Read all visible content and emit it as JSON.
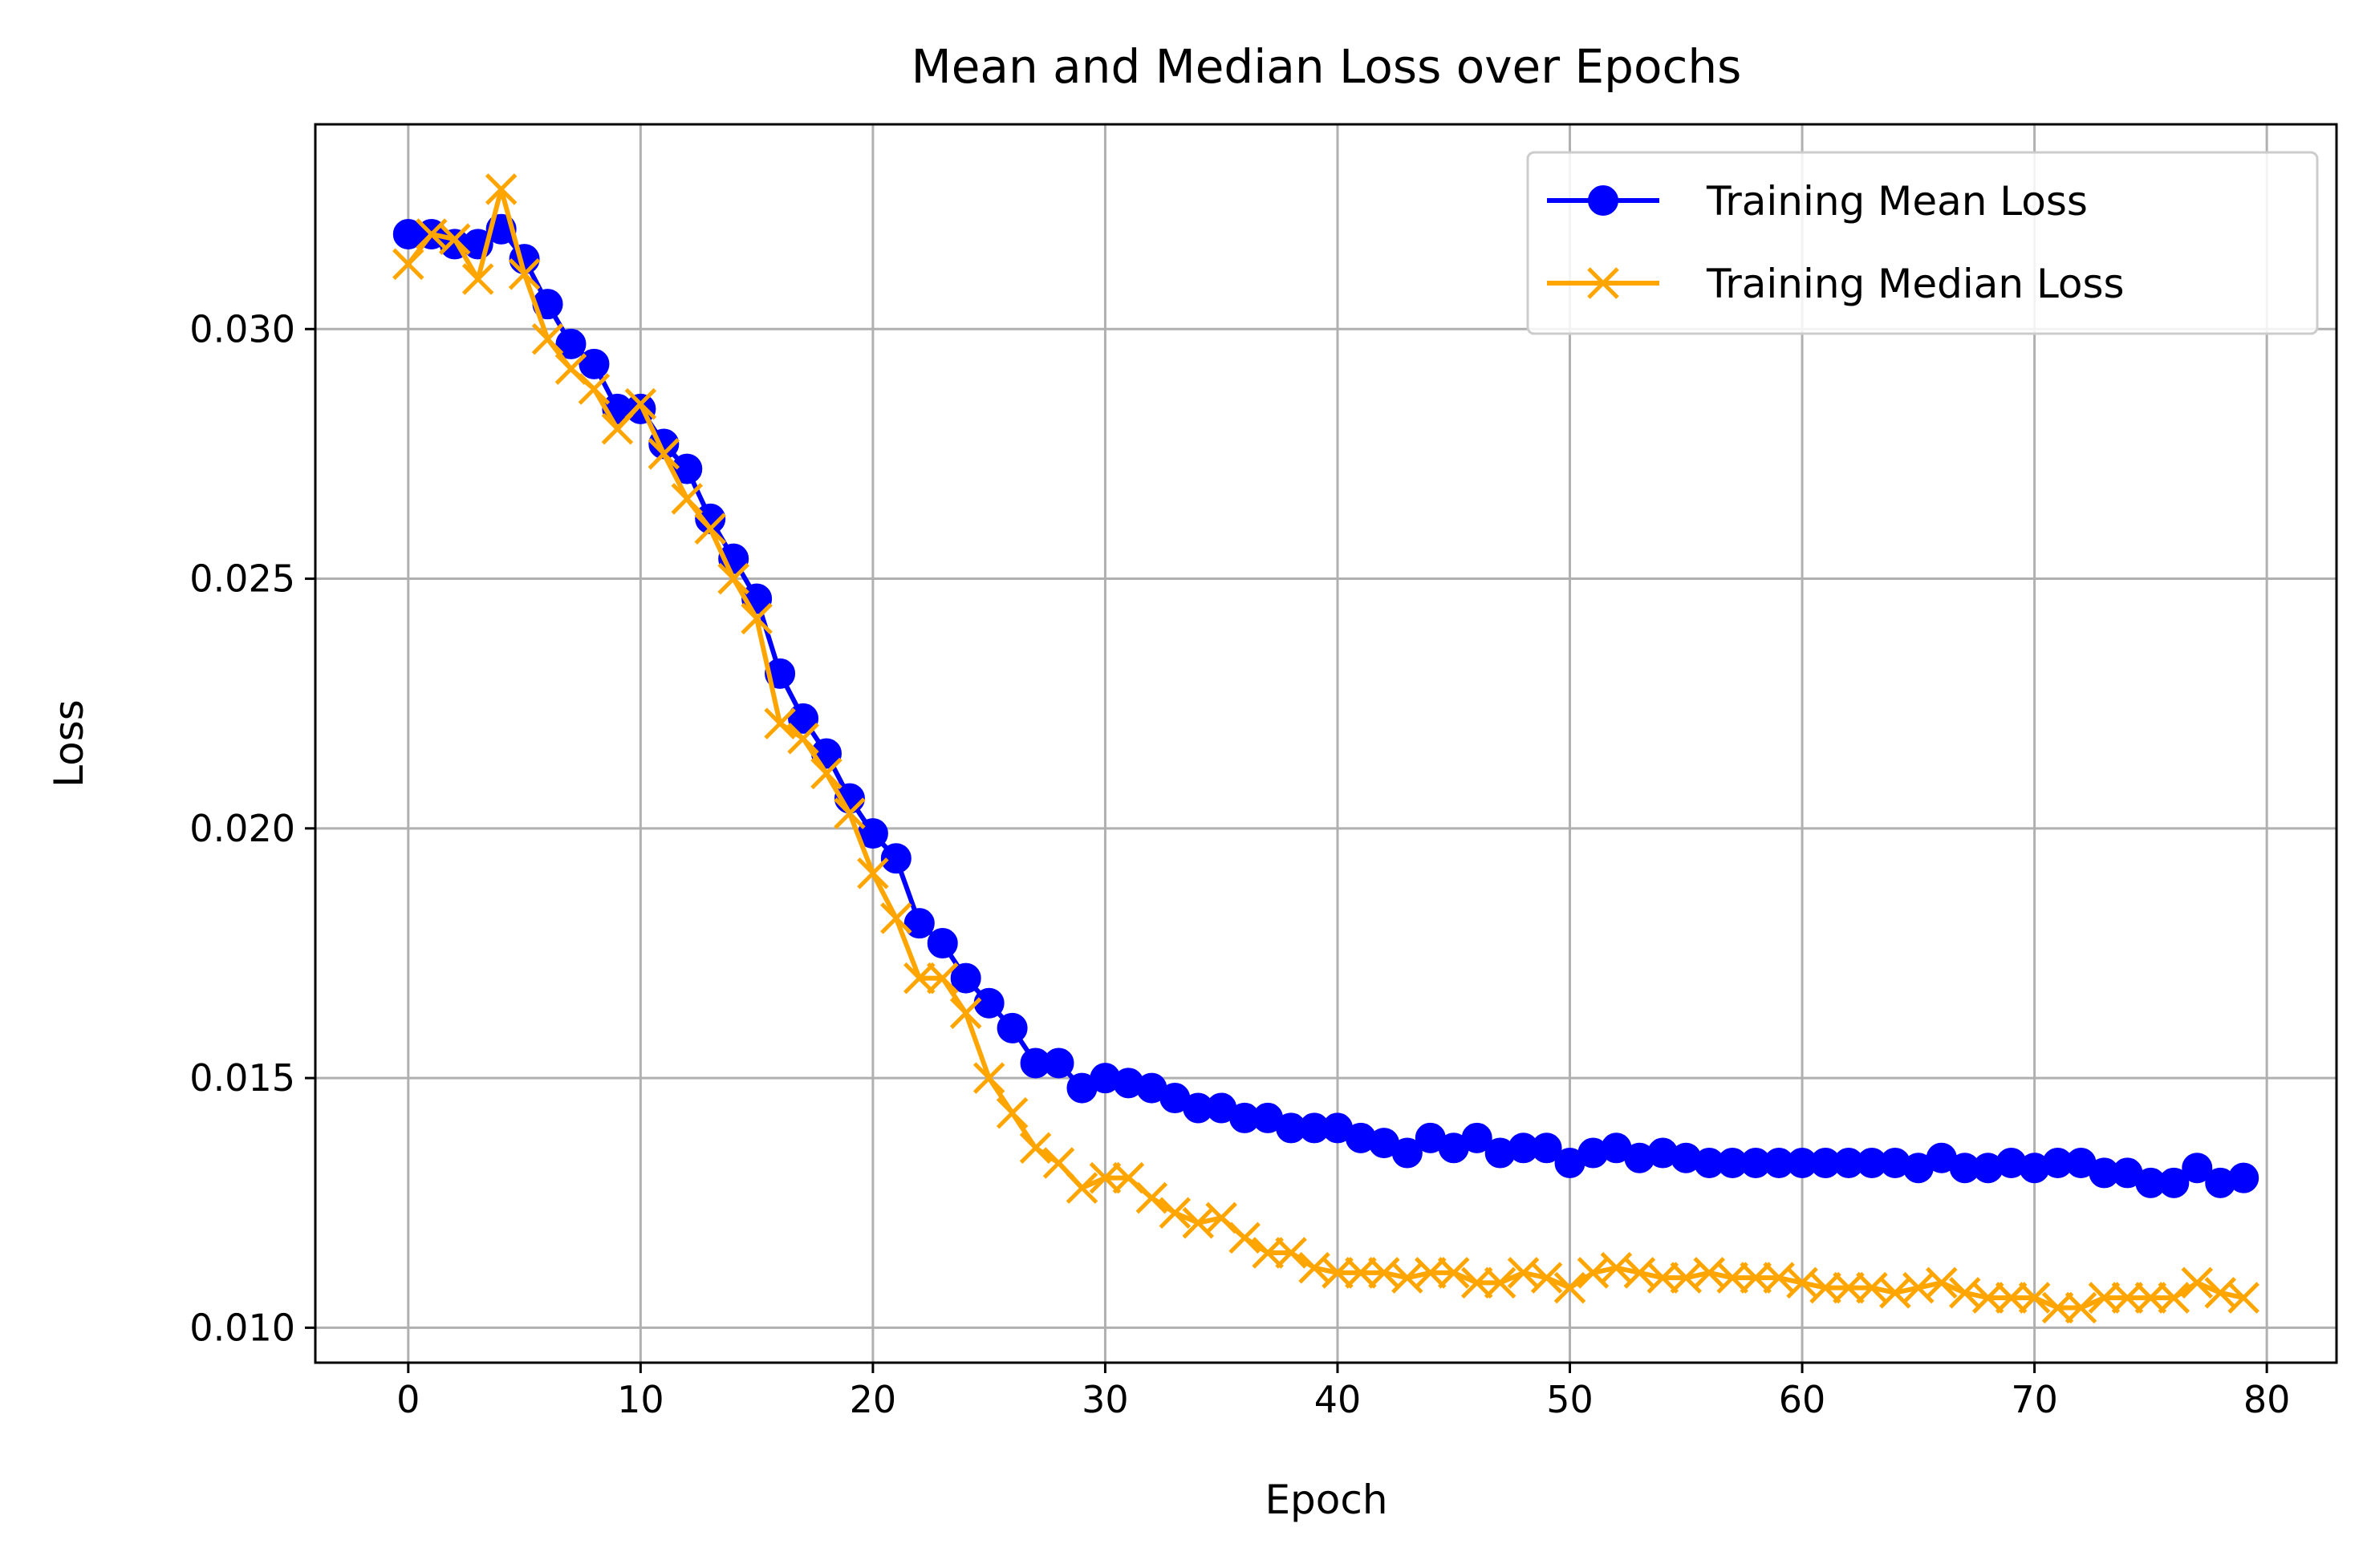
{
  "chart_data": {
    "type": "line",
    "title": "Mean and Median Loss over Epochs",
    "xlabel": "Epoch",
    "ylabel": "Loss",
    "xlim": [
      -4,
      83
    ],
    "ylim": [
      0.0093,
      0.0341
    ],
    "xticks": [
      0,
      10,
      20,
      30,
      40,
      50,
      60,
      70,
      80
    ],
    "xtick_labels": [
      "0",
      "10",
      "20",
      "30",
      "40",
      "50",
      "60",
      "70",
      "80"
    ],
    "yticks": [
      0.01,
      0.015,
      0.02,
      0.025,
      0.03
    ],
    "ytick_labels": [
      "0.010",
      "0.015",
      "0.020",
      "0.025",
      "0.030"
    ],
    "grid": true,
    "legend": "upper right",
    "x": [
      0,
      1,
      2,
      3,
      4,
      5,
      6,
      7,
      8,
      9,
      10,
      11,
      12,
      13,
      14,
      15,
      16,
      17,
      18,
      19,
      20,
      21,
      22,
      23,
      24,
      25,
      26,
      27,
      28,
      29,
      30,
      31,
      32,
      33,
      34,
      35,
      36,
      37,
      38,
      39,
      40,
      41,
      42,
      43,
      44,
      45,
      46,
      47,
      48,
      49,
      50,
      51,
      52,
      53,
      54,
      55,
      56,
      57,
      58,
      59,
      60,
      61,
      62,
      63,
      64,
      65,
      66,
      67,
      68,
      69,
      70,
      71,
      72,
      73,
      74,
      75,
      76,
      77,
      78,
      79
    ],
    "series": [
      {
        "name": "Training Mean Loss",
        "color": "#0000ff",
        "marker": "circle",
        "values": [
          0.0319,
          0.0319,
          0.0317,
          0.0317,
          0.032,
          0.0314,
          0.0305,
          0.0297,
          0.0293,
          0.0284,
          0.0284,
          0.0277,
          0.0272,
          0.0262,
          0.0254,
          0.0246,
          0.0231,
          0.0222,
          0.0215,
          0.0206,
          0.0199,
          0.0194,
          0.0181,
          0.0177,
          0.017,
          0.0165,
          0.016,
          0.0153,
          0.0153,
          0.0148,
          0.015,
          0.0149,
          0.0148,
          0.0146,
          0.0144,
          0.0144,
          0.0142,
          0.0142,
          0.014,
          0.014,
          0.014,
          0.0138,
          0.0137,
          0.0135,
          0.0138,
          0.0136,
          0.0138,
          0.0135,
          0.0136,
          0.0136,
          0.0133,
          0.0135,
          0.0136,
          0.0134,
          0.0135,
          0.0134,
          0.0133,
          0.0133,
          0.0133,
          0.0133,
          0.0133,
          0.0133,
          0.0133,
          0.0133,
          0.0133,
          0.0132,
          0.0134,
          0.0132,
          0.0132,
          0.0133,
          0.0132,
          0.0133,
          0.0133,
          0.0131,
          0.0131,
          0.0129,
          0.0129,
          0.0132,
          0.0129,
          0.013
        ]
      },
      {
        "name": "Training Median Loss",
        "color": "#ffa500",
        "marker": "x",
        "values": [
          0.0313,
          0.0319,
          0.0318,
          0.031,
          0.0328,
          0.0311,
          0.0298,
          0.0292,
          0.0288,
          0.028,
          0.0285,
          0.0275,
          0.0266,
          0.026,
          0.025,
          0.0242,
          0.0221,
          0.0218,
          0.0211,
          0.0203,
          0.0191,
          0.0182,
          0.017,
          0.017,
          0.0163,
          0.015,
          0.0143,
          0.0136,
          0.0133,
          0.0128,
          0.013,
          0.013,
          0.0126,
          0.0123,
          0.0121,
          0.0122,
          0.0118,
          0.0115,
          0.0115,
          0.0112,
          0.0111,
          0.0111,
          0.0111,
          0.011,
          0.0111,
          0.0111,
          0.0109,
          0.0109,
          0.0111,
          0.011,
          0.0108,
          0.0111,
          0.0112,
          0.0111,
          0.011,
          0.011,
          0.0111,
          0.011,
          0.011,
          0.011,
          0.0109,
          0.0108,
          0.0108,
          0.0108,
          0.0107,
          0.0108,
          0.0109,
          0.0107,
          0.0106,
          0.0106,
          0.0106,
          0.0104,
          0.0104,
          0.0106,
          0.0106,
          0.0106,
          0.0106,
          0.0109,
          0.0107,
          0.0106
        ]
      }
    ]
  }
}
